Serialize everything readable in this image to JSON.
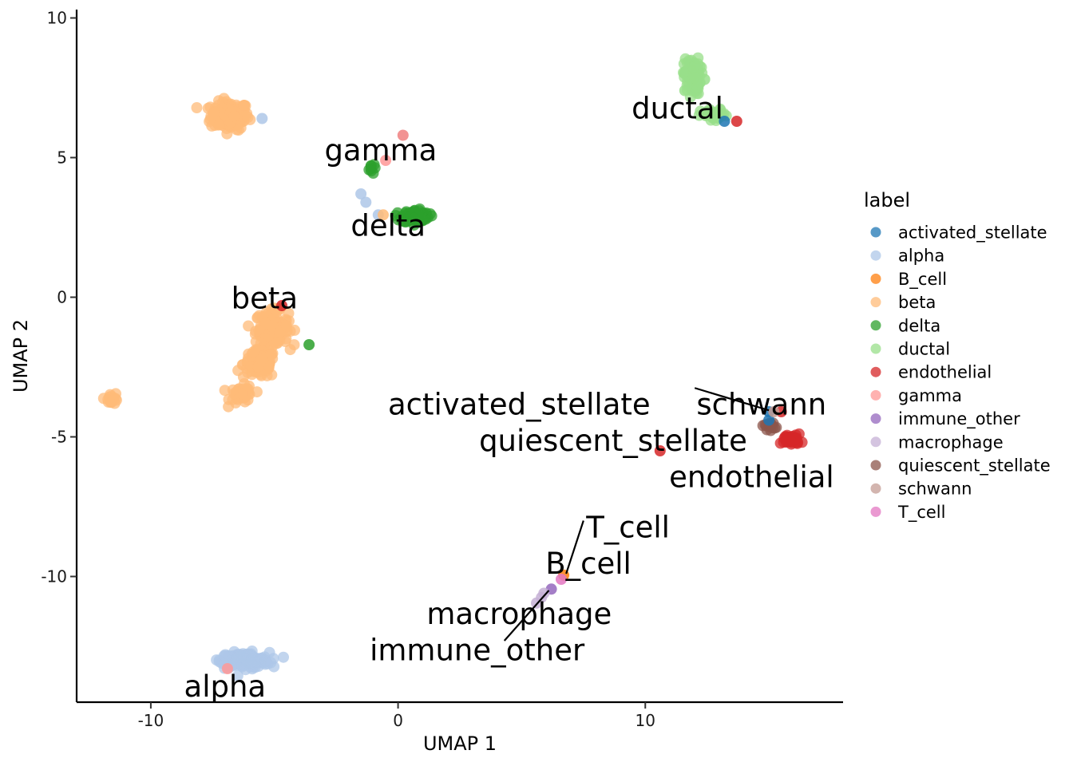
{
  "chart_data": {
    "type": "scatter",
    "xlabel": "UMAP 1",
    "ylabel": "UMAP 2",
    "xlim": [
      -13,
      18
    ],
    "ylim": [
      -14.5,
      10.3
    ],
    "x_ticks": [
      -10,
      0,
      10
    ],
    "x_tick_labels": [
      "-10",
      "0",
      "10"
    ],
    "y_ticks": [
      -10,
      -5,
      0,
      5,
      10
    ],
    "y_tick_labels": [
      "-10",
      "-5",
      "0",
      "5",
      "10"
    ],
    "grid": false,
    "legend": {
      "title": "label",
      "placement": "right",
      "entries": [
        {
          "name": "activated_stellate",
          "color": "#1f77b4"
        },
        {
          "name": "alpha",
          "color": "#aec7e8"
        },
        {
          "name": "B_cell",
          "color": "#ff7f0e"
        },
        {
          "name": "beta",
          "color": "#ffbb78"
        },
        {
          "name": "delta",
          "color": "#2ca02c"
        },
        {
          "name": "ductal",
          "color": "#98df8a"
        },
        {
          "name": "endothelial",
          "color": "#d62728"
        },
        {
          "name": "gamma",
          "color": "#ff9896"
        },
        {
          "name": "immune_other",
          "color": "#9467bd"
        },
        {
          "name": "macrophage",
          "color": "#c5b0d5"
        },
        {
          "name": "quiescent_stellate",
          "color": "#8c564b"
        },
        {
          "name": "schwann",
          "color": "#c49c94"
        },
        {
          "name": "T_cell",
          "color": "#e377c2"
        }
      ]
    },
    "clusters": [
      {
        "label": "beta",
        "color": "#ffbb78",
        "center": [
          -6.8,
          6.5
        ],
        "spread": [
          0.7,
          0.45
        ],
        "n": 180
      },
      {
        "label": "beta",
        "color": "#ffbb78",
        "center": [
          -5.1,
          -1.1
        ],
        "spread": [
          0.6,
          0.55
        ],
        "n": 140
      },
      {
        "label": "beta",
        "color": "#ffbb78",
        "center": [
          -5.6,
          -2.4
        ],
        "spread": [
          0.6,
          0.45
        ],
        "n": 110
      },
      {
        "label": "beta",
        "color": "#ffbb78",
        "center": [
          -6.3,
          -3.5
        ],
        "spread": [
          0.45,
          0.3
        ],
        "n": 40
      },
      {
        "label": "beta",
        "color": "#ffbb78",
        "center": [
          -11.6,
          -3.6
        ],
        "spread": [
          0.25,
          0.2
        ],
        "n": 15
      },
      {
        "label": "alpha",
        "color": "#aec7e8",
        "center": [
          -6.2,
          -13.0
        ],
        "spread": [
          0.9,
          0.25
        ],
        "n": 160
      },
      {
        "label": "delta",
        "color": "#2ca02c",
        "center": [
          0.7,
          2.9
        ],
        "spread": [
          0.5,
          0.2
        ],
        "n": 110
      },
      {
        "label": "delta",
        "color": "#2ca02c",
        "center": [
          -1.1,
          4.6
        ],
        "spread": [
          0.15,
          0.15
        ],
        "n": 8
      },
      {
        "label": "ductal",
        "color": "#98df8a",
        "center": [
          11.9,
          7.9
        ],
        "spread": [
          0.3,
          0.6
        ],
        "n": 80
      },
      {
        "label": "ductal",
        "color": "#98df8a",
        "center": [
          12.8,
          6.5
        ],
        "spread": [
          0.5,
          0.2
        ],
        "n": 40
      },
      {
        "label": "endothelial",
        "color": "#d62728",
        "center": [
          15.9,
          -5.1
        ],
        "spread": [
          0.35,
          0.18
        ],
        "n": 40
      },
      {
        "label": "quiescent_stellate",
        "color": "#8c564b",
        "center": [
          15.0,
          -4.6
        ],
        "spread": [
          0.25,
          0.12
        ],
        "n": 15
      }
    ],
    "points": [
      {
        "x": 0.2,
        "y": 5.8,
        "color": "#f08080"
      },
      {
        "x": -0.5,
        "y": 4.9,
        "color": "#ff9896"
      },
      {
        "x": -1.5,
        "y": 3.7,
        "color": "#aec7e8"
      },
      {
        "x": -1.3,
        "y": 3.4,
        "color": "#aec7e8"
      },
      {
        "x": -0.8,
        "y": 2.95,
        "color": "#aec7e8"
      },
      {
        "x": -0.6,
        "y": 2.95,
        "color": "#ffbb78"
      },
      {
        "x": -5.5,
        "y": 6.4,
        "color": "#aec7e8"
      },
      {
        "x": -4.7,
        "y": -0.3,
        "color": "#d62728"
      },
      {
        "x": -3.6,
        "y": -1.7,
        "color": "#2ca02c"
      },
      {
        "x": -6.9,
        "y": -13.3,
        "color": "#ff9896"
      },
      {
        "x": 13.2,
        "y": 6.3,
        "color": "#1f77b4"
      },
      {
        "x": 13.7,
        "y": 6.3,
        "color": "#d62728"
      },
      {
        "x": 11.6,
        "y": 7.4,
        "color": "#98df8a"
      },
      {
        "x": 12.4,
        "y": 7.8,
        "color": "#98df8a"
      },
      {
        "x": 10.6,
        "y": -5.5,
        "color": "#d62728"
      },
      {
        "x": 15.0,
        "y": -4.1,
        "color": "#1f77b4"
      },
      {
        "x": 15.0,
        "y": -4.4,
        "color": "#1f77b4"
      },
      {
        "x": 15.5,
        "y": -4.1,
        "color": "#d62728"
      },
      {
        "x": 15.2,
        "y": -4.1,
        "color": "#c49c94"
      },
      {
        "x": 6.7,
        "y": -9.95,
        "color": "#ff7f0e"
      },
      {
        "x": 6.6,
        "y": -10.1,
        "color": "#e377c2"
      },
      {
        "x": 6.2,
        "y": -10.45,
        "color": "#9467bd"
      },
      {
        "x": 5.8,
        "y": -10.75,
        "color": "#c5b0d5"
      },
      {
        "x": 5.6,
        "y": -10.95,
        "color": "#c5b0d5"
      },
      {
        "x": 5.9,
        "y": -10.6,
        "color": "#c5b0d5"
      }
    ],
    "annotations": [
      {
        "text": "ductal",
        "x": 11.3,
        "y": 6.4
      },
      {
        "text": "gamma",
        "x": -0.7,
        "y": 4.9
      },
      {
        "text": "delta",
        "x": -0.4,
        "y": 2.2
      },
      {
        "text": "beta",
        "x": -5.4,
        "y": -0.4
      },
      {
        "text": "activated_stellate",
        "x": 4.9,
        "y": -4.2
      },
      {
        "text": "schwann",
        "x": 14.7,
        "y": -4.2
      },
      {
        "text": "quiescent_stellate",
        "x": 8.7,
        "y": -5.5
      },
      {
        "text": "endothelial",
        "x": 14.3,
        "y": -6.8
      },
      {
        "text": "T_cell",
        "x": 9.3,
        "y": -8.6
      },
      {
        "text": "B_cell",
        "x": 7.7,
        "y": -9.9
      },
      {
        "text": "macrophage",
        "x": 4.9,
        "y": -11.7
      },
      {
        "text": "immune_other",
        "x": 3.2,
        "y": -13.0
      },
      {
        "text": "alpha",
        "x": -7.0,
        "y": -14.3
      }
    ],
    "connectors": [
      {
        "from": [
          12.0,
          -3.25
        ],
        "to": [
          15.0,
          -4.05
        ]
      },
      {
        "from": [
          7.5,
          -8.0
        ],
        "to": [
          6.8,
          -9.9
        ]
      },
      {
        "from": [
          4.3,
          -12.3
        ],
        "to": [
          6.1,
          -10.5
        ]
      }
    ]
  }
}
